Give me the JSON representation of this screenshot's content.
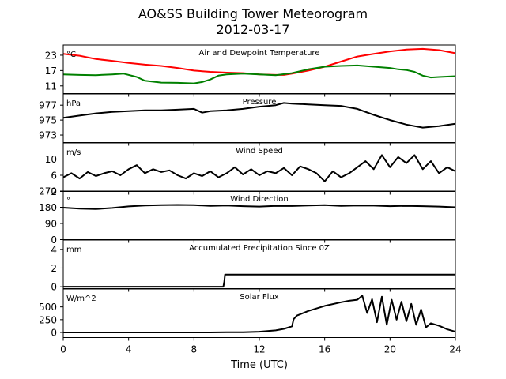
{
  "figure": {
    "title": "AO&SS Building Tower Meteorogram",
    "subtitle": "2012-03-17",
    "xlabel": "Time (UTC)"
  },
  "chart_data": [
    {
      "type": "line",
      "title": "Air and Dewpoint Temperature",
      "ylabel": "°C",
      "x_range": [
        0,
        24
      ],
      "ylim": [
        8,
        27
      ],
      "yticks": [
        11,
        17,
        23
      ],
      "xticks": [
        0,
        4,
        8,
        12,
        16,
        20,
        24
      ],
      "series": [
        {
          "color": "#ff0000",
          "x": [
            0,
            1,
            2,
            3,
            4,
            5,
            6,
            7,
            8,
            9,
            10,
            11,
            12,
            13,
            13.5,
            14,
            15,
            16,
            17,
            18,
            19,
            20,
            21,
            22,
            23,
            24
          ],
          "y": [
            23.5,
            22.8,
            21.5,
            20.8,
            20,
            19.3,
            18.8,
            18,
            17,
            16.5,
            16.2,
            16,
            15.5,
            15.3,
            15.3,
            15.8,
            17,
            18.5,
            20.5,
            22.5,
            23.5,
            24.5,
            25.2,
            25.5,
            25,
            23.8
          ]
        },
        {
          "color": "#008000",
          "x": [
            0,
            1,
            2,
            3,
            3.7,
            4.5,
            5,
            6,
            7,
            8,
            8.5,
            9,
            9.5,
            10,
            11,
            12,
            13,
            14,
            15,
            16,
            17,
            18,
            19,
            20,
            20.5,
            21,
            21.5,
            22,
            22.5,
            23,
            24
          ],
          "y": [
            15.5,
            15.3,
            15.2,
            15.5,
            15.8,
            14.5,
            13,
            12.3,
            12.2,
            12,
            12.5,
            13.5,
            15,
            15.5,
            15.8,
            15.5,
            15.2,
            16,
            17.5,
            18.5,
            18.8,
            19,
            18.5,
            18,
            17.5,
            17.2,
            16.5,
            15,
            14.3,
            14.5,
            14.8
          ]
        }
      ]
    },
    {
      "type": "line",
      "title": "Pressure",
      "ylabel": "hPa",
      "x_range": [
        0,
        24
      ],
      "ylim": [
        972,
        978.5
      ],
      "yticks": [
        973,
        975,
        977
      ],
      "xticks": [
        0,
        4,
        8,
        12,
        16,
        20,
        24
      ],
      "series": [
        {
          "color": "#000000",
          "x": [
            0,
            1,
            2,
            3,
            4,
            5,
            6,
            7,
            8,
            8.5,
            9,
            10,
            11,
            12,
            13,
            13.5,
            14,
            15,
            16,
            17,
            18,
            19,
            20,
            21,
            22,
            23,
            24
          ],
          "y": [
            975.3,
            975.6,
            975.9,
            976.1,
            976.2,
            976.3,
            976.3,
            976.4,
            976.5,
            976.0,
            976.2,
            976.3,
            976.5,
            976.8,
            977.0,
            977.3,
            977.2,
            977.1,
            977.0,
            976.9,
            976.5,
            975.7,
            975.0,
            974.4,
            974.0,
            974.2,
            974.5
          ]
        }
      ]
    },
    {
      "type": "line",
      "title": "Wind Speed",
      "ylabel": "m/s",
      "x_range": [
        0,
        24
      ],
      "ylim": [
        2,
        14
      ],
      "yticks": [
        2,
        6,
        10
      ],
      "xticks": [
        0,
        4,
        8,
        12,
        16,
        20,
        24
      ],
      "series": [
        {
          "color": "#000000",
          "x": [
            0,
            0.5,
            1,
            1.5,
            2,
            2.5,
            3,
            3.5,
            4,
            4.5,
            5,
            5.5,
            6,
            6.5,
            7,
            7.5,
            8,
            8.5,
            9,
            9.5,
            10,
            10.5,
            11,
            11.5,
            12,
            12.5,
            13,
            13.5,
            14,
            14.5,
            15,
            15.5,
            16,
            16.5,
            17,
            17.5,
            18,
            18.5,
            19,
            19.5,
            20,
            20.5,
            21,
            21.5,
            22,
            22.5,
            23,
            23.5,
            24
          ],
          "y": [
            5.5,
            6.5,
            5.2,
            6.8,
            5.8,
            6.5,
            7.0,
            6.0,
            7.5,
            8.5,
            6.5,
            7.5,
            6.8,
            7.2,
            6.0,
            5.2,
            6.5,
            5.8,
            7.0,
            5.5,
            6.5,
            8.0,
            6.2,
            7.5,
            6.0,
            7.0,
            6.5,
            7.8,
            6.0,
            8.2,
            7.5,
            6.5,
            4.5,
            7.0,
            5.5,
            6.5,
            8.0,
            9.5,
            7.5,
            11.0,
            8.0,
            10.5,
            9.0,
            11.0,
            7.5,
            9.5,
            6.5,
            8.0,
            7.0
          ]
        }
      ]
    },
    {
      "type": "line",
      "title": "Wind Direction",
      "ylabel": "°",
      "x_range": [
        0,
        24
      ],
      "ylim": [
        0,
        270
      ],
      "yticks": [
        0,
        90,
        180,
        270
      ],
      "xticks": [
        0,
        4,
        8,
        12,
        16,
        20,
        24
      ],
      "series": [
        {
          "color": "#000000",
          "x": [
            0,
            1,
            2,
            3,
            4,
            5,
            6,
            7,
            8,
            9,
            10,
            11,
            12,
            13,
            14,
            15,
            16,
            17,
            18,
            19,
            20,
            21,
            22,
            23,
            24
          ],
          "y": [
            178,
            172,
            170,
            176,
            185,
            190,
            192,
            193,
            192,
            188,
            190,
            186,
            184,
            188,
            187,
            190,
            192,
            188,
            190,
            189,
            186,
            188,
            186,
            184,
            180
          ]
        }
      ]
    },
    {
      "type": "line",
      "title": "Accumulated Precipitation Since 0Z",
      "ylabel": "mm",
      "x_range": [
        0,
        24
      ],
      "ylim": [
        -0.2,
        5
      ],
      "yticks": [
        0,
        2,
        4
      ],
      "xticks": [
        0,
        4,
        8,
        12,
        16,
        20,
        24
      ],
      "series": [
        {
          "color": "#000000",
          "x": [
            0,
            9.8,
            9.85,
            9.9,
            24
          ],
          "y": [
            0,
            0,
            0.5,
            1.3,
            1.3
          ]
        }
      ]
    },
    {
      "type": "line",
      "title": "Solar Flux",
      "ylabel": "W/m^2",
      "x_range": [
        0,
        24
      ],
      "ylim": [
        -100,
        850
      ],
      "yticks": [
        0,
        250,
        500
      ],
      "xticks": [
        0,
        4,
        8,
        12,
        16,
        20,
        24
      ],
      "series": [
        {
          "color": "#000000",
          "x": [
            0,
            6,
            9,
            10,
            11,
            12,
            13,
            13.5,
            14,
            14.1,
            14.3,
            15,
            16,
            17,
            17.5,
            18,
            18.3,
            18.6,
            18.9,
            19.2,
            19.5,
            19.8,
            20.1,
            20.4,
            20.7,
            21,
            21.3,
            21.6,
            21.9,
            22.2,
            22.5,
            23,
            23.5,
            24
          ],
          "y": [
            0,
            0,
            0,
            3,
            5,
            15,
            40,
            70,
            120,
            260,
            330,
            420,
            520,
            590,
            620,
            640,
            720,
            380,
            650,
            200,
            700,
            150,
            640,
            250,
            600,
            220,
            560,
            150,
            450,
            100,
            180,
            130,
            60,
            15
          ]
        }
      ]
    }
  ]
}
